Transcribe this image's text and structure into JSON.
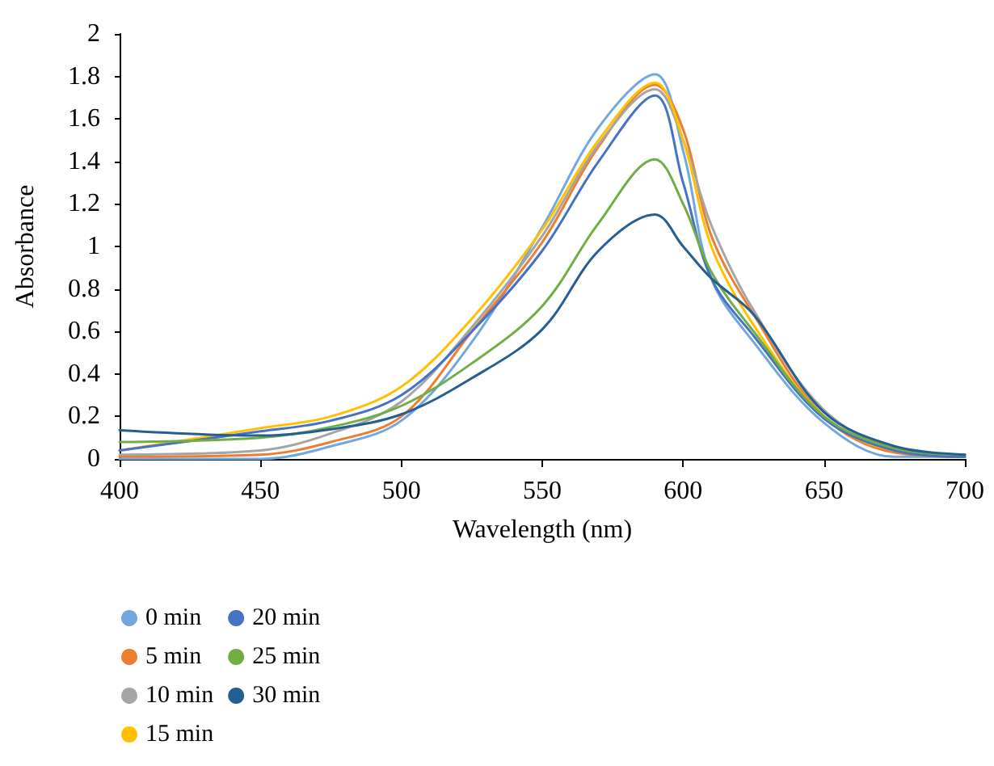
{
  "chart_data": {
    "type": "line",
    "xlabel": "Wavelength (nm)",
    "ylabel": "Absorbance",
    "x": [
      400,
      450,
      475,
      500,
      525,
      550,
      570,
      590,
      600,
      610,
      625,
      650,
      675,
      700
    ],
    "xlim": [
      400,
      700
    ],
    "xticks": [
      400,
      450,
      500,
      550,
      600,
      650,
      700
    ],
    "ylim": [
      0,
      2
    ],
    "yticks": [
      0,
      0.2,
      0.4,
      0.6,
      0.8,
      1,
      1.2,
      1.4,
      1.6,
      1.8,
      2
    ],
    "grid": false,
    "legend": "bottom",
    "marker": "none",
    "line_style": "solid",
    "series": [
      {
        "name": "0 min",
        "color": "#70a8dc",
        "values": [
          0,
          0,
          0.06,
          0.18,
          0.55,
          1.09,
          1.56,
          1.81,
          1.45,
          0.85,
          0.55,
          0.17,
          0.01,
          0.01
        ]
      },
      {
        "name": "5 min",
        "color": "#ed7d31",
        "values": [
          0.01,
          0.02,
          0.08,
          0.2,
          0.6,
          1.02,
          1.47,
          1.76,
          1.55,
          1.05,
          0.68,
          0.2,
          0.03,
          0.01
        ]
      },
      {
        "name": "10 min",
        "color": "#a5a5a5",
        "values": [
          0.02,
          0.04,
          0.12,
          0.27,
          0.62,
          1.05,
          1.48,
          1.74,
          1.5,
          1.1,
          0.7,
          0.23,
          0.05,
          0.02
        ]
      },
      {
        "name": "15 min",
        "color": "#ffc000",
        "values": [
          0.04,
          0.145,
          0.2,
          0.34,
          0.66,
          1.08,
          1.5,
          1.77,
          1.5,
          1.0,
          0.63,
          0.2,
          0.04,
          0.02
        ]
      },
      {
        "name": "20 min",
        "color": "#4472c4",
        "values": [
          0.04,
          0.13,
          0.18,
          0.3,
          0.6,
          0.98,
          1.4,
          1.71,
          1.3,
          0.85,
          0.58,
          0.19,
          0.04,
          0.01
        ]
      },
      {
        "name": "25 min",
        "color": "#70ad47",
        "values": [
          0.08,
          0.1,
          0.15,
          0.25,
          0.45,
          0.72,
          1.11,
          1.41,
          1.2,
          0.88,
          0.6,
          0.2,
          0.05,
          0.02
        ]
      },
      {
        "name": "30 min",
        "color": "#255e91",
        "values": [
          0.135,
          0.11,
          0.14,
          0.21,
          0.38,
          0.61,
          0.98,
          1.15,
          1.0,
          0.85,
          0.68,
          0.22,
          0.06,
          0.02
        ]
      }
    ]
  }
}
